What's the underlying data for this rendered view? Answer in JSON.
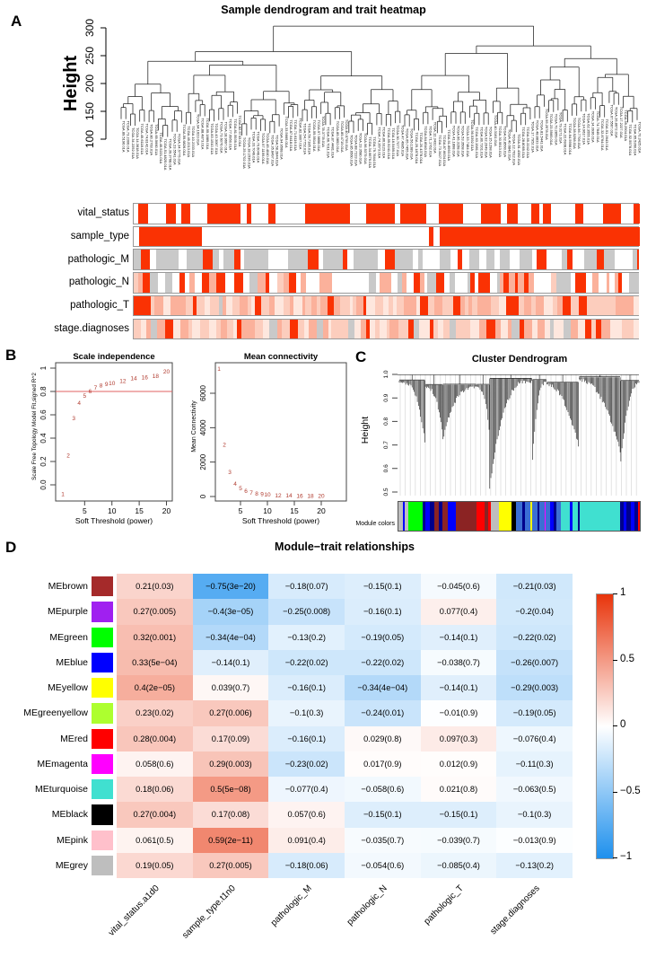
{
  "panels": {
    "a": {
      "label": "A"
    },
    "b": {
      "label": "B"
    },
    "c": {
      "label": "C"
    },
    "d": {
      "label": "D"
    }
  },
  "chart_data": [
    {
      "id": "sample_dendrogram_trait_heatmap",
      "type": "dendrogram",
      "title": "Sample dendrogram and trait heatmap",
      "ylabel": "Height",
      "ylim": [
        100,
        300
      ],
      "yticks": [
        100,
        150,
        200,
        250,
        300
      ],
      "n_samples_approx": 112,
      "leaf_label_example": "TCGA.38.4626.01A",
      "trait_rows": [
        {
          "name": "vital_status",
          "palette": [
            [
              "#FFFFFF",
              0.52
            ],
            [
              "#FA3203",
              0.48
            ]
          ],
          "cell_w": [
            4,
            14
          ]
        },
        {
          "name": "sample_type",
          "segments": [
            [
              "#FFFFFF",
              1.0
            ],
            [
              "#FA3203",
              12.4
            ],
            [
              "#FFFFFF",
              44.9
            ],
            [
              "#FA3203",
              1.0
            ],
            [
              "#FFFFFF",
              1.2
            ],
            [
              "#FA3203",
              39.5
            ]
          ]
        },
        {
          "name": "pathologic_M",
          "palette": [
            [
              "#FFFFFF",
              0.55
            ],
            [
              "#C9C9C9",
              0.37
            ],
            [
              "#FA3203",
              0.08
            ]
          ],
          "cell_w": [
            4,
            14
          ]
        },
        {
          "name": "pathologic_N",
          "palette": [
            [
              "#FBB19B",
              0.3
            ],
            [
              "#FA3203",
              0.22
            ],
            [
              "#FFFFFF",
              0.26
            ],
            [
              "#C9C9C9",
              0.12
            ],
            [
              "#FCCDBD",
              0.1
            ]
          ],
          "cell_w": [
            3,
            10
          ]
        },
        {
          "name": "pathologic_T",
          "palette": [
            [
              "#FCCDBD",
              0.45
            ],
            [
              "#FBB19B",
              0.3
            ],
            [
              "#FEE7DE",
              0.15
            ],
            [
              "#FA3203",
              0.07
            ],
            [
              "#C9C9C9",
              0.03
            ]
          ],
          "cell_w": [
            3,
            10
          ]
        },
        {
          "name": "stage.diagnoses",
          "palette": [
            [
              "#FCCDBD",
              0.35
            ],
            [
              "#FEE7DE",
              0.25
            ],
            [
              "#FBB19B",
              0.2
            ],
            [
              "#FA3203",
              0.12
            ],
            [
              "#C9C9C9",
              0.08
            ]
          ],
          "cell_w": [
            3,
            10
          ]
        }
      ]
    },
    {
      "id": "scale_independence",
      "type": "scatter",
      "title": "Scale independence",
      "xlabel": "Soft Threshold (power)",
      "ylabel": "Scale Free Topology Model Fit,signed R^2",
      "xticks": [
        5,
        10,
        15,
        20
      ],
      "yticks": [
        0,
        0.2,
        0.4,
        0.6,
        0.8,
        1
      ],
      "ytick_labels": [
        "0.0",
        "0.2",
        "0.4",
        "0.6",
        "0.8",
        "1"
      ],
      "ylim": [
        -0.12,
        1.02
      ],
      "hline": 0.8,
      "point_labels": [
        "1",
        "2",
        "3",
        "4",
        "5",
        "6",
        "7",
        "8",
        "9",
        "10",
        "12",
        "14",
        "16",
        "18",
        "20"
      ],
      "x": [
        1,
        2,
        3,
        4,
        5,
        6,
        7,
        8,
        9,
        10,
        12,
        14,
        16,
        18,
        20
      ],
      "y": [
        -0.08,
        0.25,
        0.57,
        0.7,
        0.76,
        0.8,
        0.83,
        0.85,
        0.86,
        0.87,
        0.89,
        0.91,
        0.92,
        0.93,
        0.97
      ]
    },
    {
      "id": "mean_connectivity",
      "type": "scatter",
      "title": "Mean connectivity",
      "xlabel": "Soft Threshold (power)",
      "ylabel": "Mean Connectivity",
      "xticks": [
        5,
        10,
        15,
        20
      ],
      "yticks": [
        0,
        2000,
        4000,
        6000
      ],
      "ytick_labels": [
        "0",
        "2000",
        "4000",
        "6000"
      ],
      "ylim": [
        0,
        7500
      ],
      "point_labels": [
        "1",
        "2",
        "3",
        "4",
        "5",
        "6",
        "7",
        "8",
        "9",
        "10",
        "12",
        "14",
        "16",
        "18",
        "20"
      ],
      "x": [
        1,
        2,
        3,
        4,
        5,
        6,
        7,
        8,
        9,
        10,
        12,
        14,
        16,
        18,
        20
      ],
      "y": [
        7400,
        3000,
        1400,
        730,
        470,
        310,
        210,
        160,
        130,
        100,
        50,
        40,
        35,
        30,
        25
      ]
    },
    {
      "id": "cluster_dendrogram",
      "type": "dendrogram",
      "title": "Cluster Dendrogram",
      "ylabel": "Height",
      "yticks": [
        0.5,
        0.6,
        0.7,
        0.8,
        0.9,
        1.0
      ],
      "module_colors_label": "Module colors",
      "module_bar_segments": [
        [
          "#BEBEBE",
          2
        ],
        [
          "#0000FF",
          0.8
        ],
        [
          "#BEBEBE",
          1.5
        ],
        [
          "#00FF00",
          6.5
        ],
        [
          "#00008B",
          1
        ],
        [
          "#0000FF",
          2
        ],
        [
          "#00008B",
          2
        ],
        [
          "#8B2323",
          2
        ],
        [
          "#00008B",
          1.5
        ],
        [
          "#8B2323",
          2.5
        ],
        [
          "#0000FF",
          3.5
        ],
        [
          "#8B2323",
          9
        ],
        [
          "#FF0000",
          3.5
        ],
        [
          "#8B2323",
          1.5
        ],
        [
          "#FF0000",
          1.5
        ],
        [
          "#BEBEBE",
          1.2
        ],
        [
          "#BEBEBE",
          2
        ],
        [
          "#FFFF00",
          5.5
        ],
        [
          "#000000",
          2
        ],
        [
          "#3B6FD4",
          3
        ],
        [
          "#00008B",
          1
        ],
        [
          "#3B6FD4",
          2.5
        ],
        [
          "#FFFF00",
          0.8
        ],
        [
          "#3B6FD4",
          2.5
        ],
        [
          "#00008B",
          0.8
        ],
        [
          "#3B6FD4",
          2
        ],
        [
          "#FF00FF",
          0.4
        ],
        [
          "#3B6FD4",
          2.2
        ],
        [
          "#0000FF",
          1.6
        ],
        [
          "#00008B",
          1
        ],
        [
          "#3B6FD4",
          2
        ],
        [
          "#40E0D0",
          4
        ],
        [
          "#0000FF",
          1.2
        ],
        [
          "#40E0D0",
          2.5
        ],
        [
          "#00008B",
          0.8
        ],
        [
          "#40E0D0",
          17.5
        ],
        [
          "#00008B",
          1.5
        ],
        [
          "#0000FF",
          1.5
        ],
        [
          "#00008B",
          2
        ],
        [
          "#0000FF",
          1.5
        ],
        [
          "#00008B",
          1.5
        ],
        [
          "#FF0000",
          0.8
        ]
      ]
    },
    {
      "id": "module_trait_relationships",
      "type": "heatmap",
      "title": "Module−trait relationships",
      "columns": [
        "vital_status.a1d0",
        "sample_type.t1n0",
        "pathologic_M",
        "pathologic_N",
        "pathologic_T",
        "stage.diagnoses"
      ],
      "rows": [
        {
          "module": "MEbrown",
          "color": "#A52A2A",
          "cells": [
            [
              0.21,
              "0.03"
            ],
            [
              -0.75,
              "3e-20"
            ],
            [
              -0.18,
              "0.07"
            ],
            [
              -0.15,
              "0.1"
            ],
            [
              -0.045,
              "0.6"
            ],
            [
              -0.21,
              "0.03"
            ]
          ]
        },
        {
          "module": "MEpurple",
          "color": "#A020F0",
          "cells": [
            [
              0.27,
              "0.005"
            ],
            [
              -0.4,
              "3e-05"
            ],
            [
              -0.25,
              "0.008"
            ],
            [
              -0.16,
              "0.1"
            ],
            [
              0.077,
              "0.4"
            ],
            [
              -0.2,
              "0.04"
            ]
          ]
        },
        {
          "module": "MEgreen",
          "color": "#00FF00",
          "cells": [
            [
              0.32,
              "0.001"
            ],
            [
              -0.34,
              "4e-04"
            ],
            [
              -0.13,
              "0.2"
            ],
            [
              -0.19,
              "0.05"
            ],
            [
              -0.14,
              "0.1"
            ],
            [
              -0.22,
              "0.02"
            ]
          ]
        },
        {
          "module": "MEblue",
          "color": "#0000FF",
          "cells": [
            [
              0.33,
              "5e-04"
            ],
            [
              -0.14,
              "0.1"
            ],
            [
              -0.22,
              "0.02"
            ],
            [
              -0.22,
              "0.02"
            ],
            [
              -0.038,
              "0.7"
            ],
            [
              -0.26,
              "0.007"
            ]
          ]
        },
        {
          "module": "MEyellow",
          "color": "#FFFF00",
          "cells": [
            [
              0.4,
              "2e-05"
            ],
            [
              0.039,
              "0.7"
            ],
            [
              -0.16,
              "0.1"
            ],
            [
              -0.34,
              "4e-04"
            ],
            [
              -0.14,
              "0.1"
            ],
            [
              -0.29,
              "0.003"
            ]
          ]
        },
        {
          "module": "MEgreenyellow",
          "color": "#ADFF2F",
          "cells": [
            [
              0.23,
              "0.02"
            ],
            [
              0.27,
              "0.006"
            ],
            [
              -0.1,
              "0.3"
            ],
            [
              -0.24,
              "0.01"
            ],
            [
              -0.01,
              "0.9"
            ],
            [
              -0.19,
              "0.05"
            ]
          ]
        },
        {
          "module": "MEred",
          "color": "#FF0000",
          "cells": [
            [
              0.28,
              "0.004"
            ],
            [
              0.17,
              "0.09"
            ],
            [
              -0.16,
              "0.1"
            ],
            [
              0.029,
              "0.8"
            ],
            [
              0.097,
              "0.3"
            ],
            [
              -0.076,
              "0.4"
            ]
          ]
        },
        {
          "module": "MEmagenta",
          "color": "#FF00FF",
          "cells": [
            [
              0.058,
              "0.6"
            ],
            [
              0.29,
              "0.003"
            ],
            [
              -0.23,
              "0.02"
            ],
            [
              0.017,
              "0.9"
            ],
            [
              0.012,
              "0.9"
            ],
            [
              -0.11,
              "0.3"
            ]
          ]
        },
        {
          "module": "MEturquoise",
          "color": "#40E0D0",
          "cells": [
            [
              0.18,
              "0.06"
            ],
            [
              0.5,
              "5e-08"
            ],
            [
              -0.077,
              "0.4"
            ],
            [
              -0.058,
              "0.6"
            ],
            [
              0.021,
              "0.8"
            ],
            [
              -0.063,
              "0.5"
            ]
          ]
        },
        {
          "module": "MEblack",
          "color": "#000000",
          "cells": [
            [
              0.27,
              "0.004"
            ],
            [
              0.17,
              "0.08"
            ],
            [
              0.057,
              "0.6"
            ],
            [
              -0.15,
              "0.1"
            ],
            [
              -0.15,
              "0.1"
            ],
            [
              -0.1,
              "0.3"
            ]
          ]
        },
        {
          "module": "MEpink",
          "color": "#FFC0CB",
          "cells": [
            [
              0.061,
              "0.5"
            ],
            [
              0.59,
              "2e-11"
            ],
            [
              0.091,
              "0.4"
            ],
            [
              -0.035,
              "0.7"
            ],
            [
              -0.039,
              "0.7"
            ],
            [
              -0.013,
              "0.9"
            ]
          ]
        },
        {
          "module": "MEgrey",
          "color": "#BEBEBE",
          "cells": [
            [
              0.19,
              "0.05"
            ],
            [
              0.27,
              "0.005"
            ],
            [
              -0.18,
              "0.06"
            ],
            [
              -0.054,
              "0.6"
            ],
            [
              -0.085,
              "0.4"
            ],
            [
              -0.13,
              "0.2"
            ]
          ]
        }
      ],
      "colorbar_ticks": [
        "1",
        "0.5",
        "0",
        "-0.5",
        "-1"
      ],
      "color_positive": "#E8340B",
      "color_negative": "#1E90ED"
    }
  ]
}
